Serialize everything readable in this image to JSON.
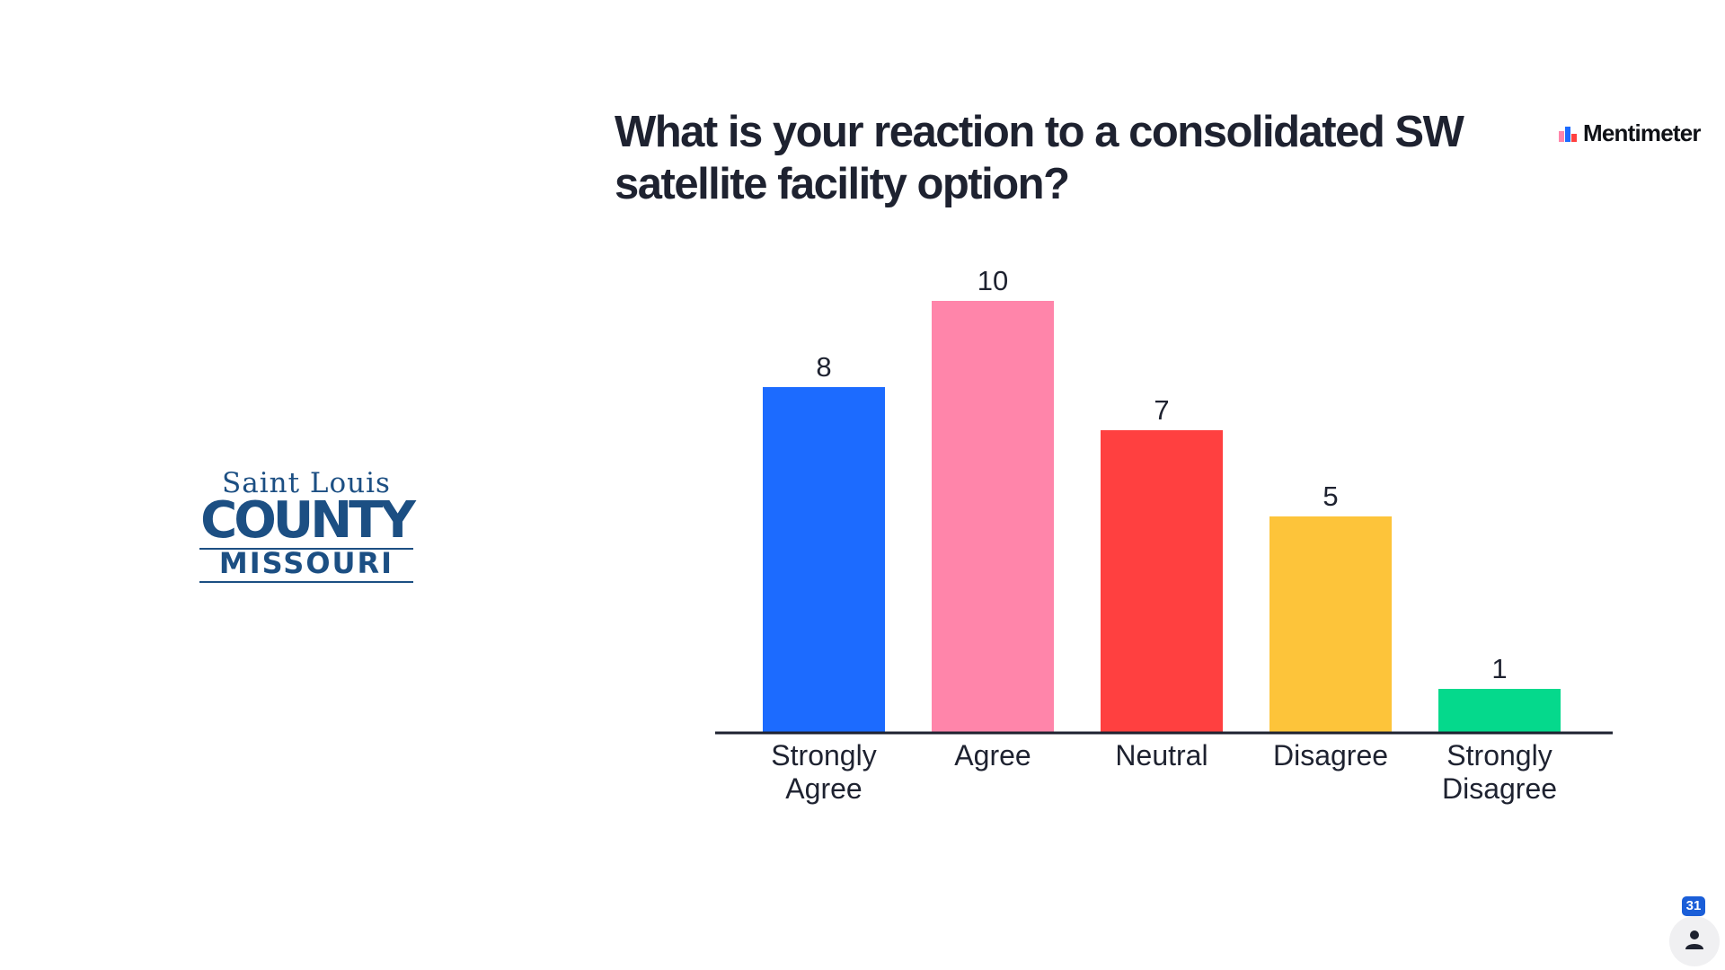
{
  "slide": {
    "title": "What is your reaction to a consolidated SW satellite facility option?",
    "brand": {
      "name": "Mentimeter",
      "icon": "mentimeter-logo-icon"
    },
    "logo": {
      "line1": "Saint Louis",
      "line2": "COUNTY",
      "line3": "MISSOURI",
      "color": "#1c4f83"
    },
    "participants": {
      "count": "31",
      "icon": "person-icon"
    }
  },
  "chart_data": {
    "type": "bar",
    "title": "What is your reaction to a consolidated SW satellite facility option?",
    "categories": [
      [
        "Strongly",
        "Agree"
      ],
      [
        "Agree"
      ],
      [
        "Neutral"
      ],
      [
        "Disagree"
      ],
      [
        "Strongly",
        "Disagree"
      ]
    ],
    "values": [
      8,
      10,
      7,
      5,
      1
    ],
    "colors": [
      "#1c6bff",
      "#ff85aa",
      "#ff4040",
      "#fdc43a",
      "#05d98c"
    ],
    "xlabel": "",
    "ylabel": "",
    "ylim": [
      0,
      10
    ],
    "grid": false,
    "data_labels": true
  }
}
